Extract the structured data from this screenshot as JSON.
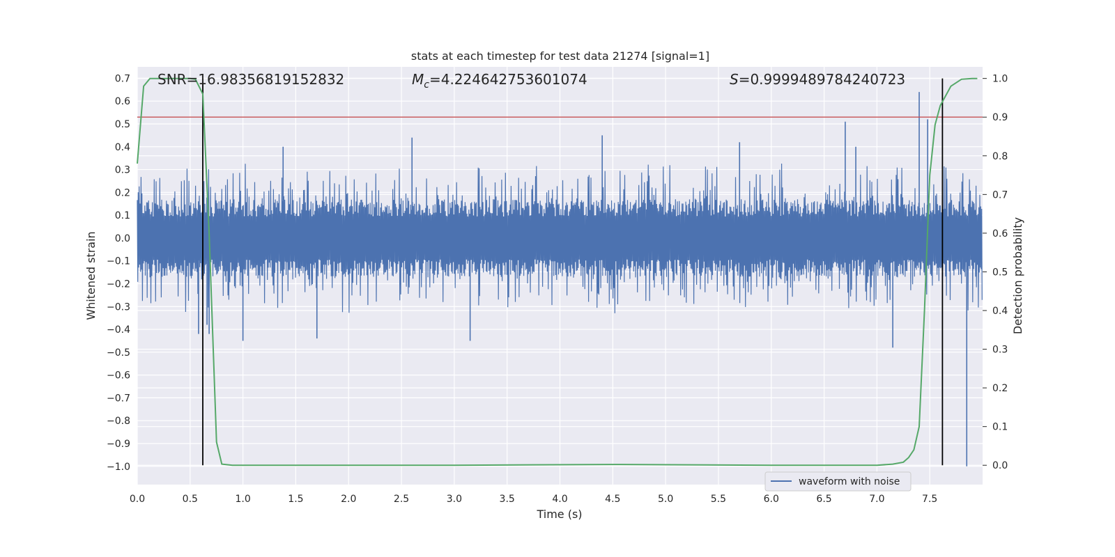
{
  "chart_data": {
    "type": "line",
    "title": "stats at each timestep for test data 21274 [signal=1]",
    "xlabel": "Time (s)",
    "ylabel": "Whitened strain",
    "y2label": "Detection probability",
    "xlim": [
      0.0,
      8.0
    ],
    "ylim": [
      -1.08,
      0.75
    ],
    "y2lim": [
      -0.05,
      1.03
    ],
    "xticks": [
      "0.0",
      "0.5",
      "1.0",
      "1.5",
      "2.0",
      "2.5",
      "3.0",
      "3.5",
      "4.0",
      "4.5",
      "5.0",
      "5.5",
      "6.0",
      "6.5",
      "7.0",
      "7.5"
    ],
    "yticks": [
      "0.7",
      "0.6",
      "0.5",
      "0.4",
      "0.3",
      "0.2",
      "0.1",
      "0.0",
      "−0.1",
      "−0.2",
      "−0.3",
      "−0.4",
      "−0.5",
      "−0.6",
      "−0.7",
      "−0.8",
      "−0.9",
      "−1.0"
    ],
    "y2ticks": [
      "1.0",
      "0.9",
      "0.8",
      "0.7",
      "0.6",
      "0.5",
      "0.4",
      "0.3",
      "0.2",
      "0.1",
      "0.0"
    ],
    "annotations": {
      "snr": "SNR=16.98356819152832",
      "mc_symbol": "M",
      "mc_sub": "c",
      "mc_value": "=4.224642753601074",
      "s_symbol": "S",
      "s_value": "=0.9999489784240723"
    },
    "legend": {
      "entry": "waveform with noise",
      "placement": "lower-right"
    },
    "threshold": 0.9,
    "vlines": [
      0.62,
      7.62
    ],
    "waveform": {
      "name": "waveform with noise",
      "duration": 8.0,
      "envelope": 0.17,
      "spikes": [
        {
          "x": 0.58,
          "y": -0.42
        },
        {
          "x": 0.66,
          "y": -0.38
        },
        {
          "x": 0.68,
          "y": -0.42
        },
        {
          "x": 1.0,
          "y": -0.45
        },
        {
          "x": 1.38,
          "y": 0.4
        },
        {
          "x": 1.7,
          "y": -0.44
        },
        {
          "x": 2.6,
          "y": 0.44
        },
        {
          "x": 3.15,
          "y": -0.45
        },
        {
          "x": 4.4,
          "y": 0.45
        },
        {
          "x": 5.7,
          "y": 0.42
        },
        {
          "x": 6.7,
          "y": 0.51
        },
        {
          "x": 6.8,
          "y": 0.4
        },
        {
          "x": 7.15,
          "y": -0.48
        },
        {
          "x": 7.4,
          "y": 0.64
        },
        {
          "x": 7.48,
          "y": 0.52
        },
        {
          "x": 7.85,
          "y": -1.0
        }
      ],
      "color": "#4c72b0"
    },
    "detection_probability": {
      "x": [
        0.0,
        0.06,
        0.12,
        0.2,
        0.3,
        0.4,
        0.5,
        0.55,
        0.62,
        0.68,
        0.75,
        0.8,
        0.9,
        1.5,
        3.0,
        4.5,
        6.0,
        6.5,
        7.0,
        7.15,
        7.25,
        7.3,
        7.35,
        7.4,
        7.45,
        7.5,
        7.55,
        7.6,
        7.7,
        7.8,
        7.9,
        7.95
      ],
      "y": [
        0.78,
        0.98,
        1.0,
        1.0,
        1.0,
        1.0,
        1.0,
        0.998,
        0.96,
        0.6,
        0.06,
        0.003,
        0.0,
        0.0,
        0.0,
        0.002,
        0.0,
        0.0,
        0.0,
        0.003,
        0.008,
        0.02,
        0.04,
        0.1,
        0.4,
        0.75,
        0.88,
        0.93,
        0.98,
        0.998,
        1.0,
        1.0
      ],
      "color": "#55a868"
    },
    "colors": {
      "background": "#eaeaf2",
      "grid": "#ffffff",
      "threshold": "#c44e52",
      "vline": "#000000"
    }
  }
}
